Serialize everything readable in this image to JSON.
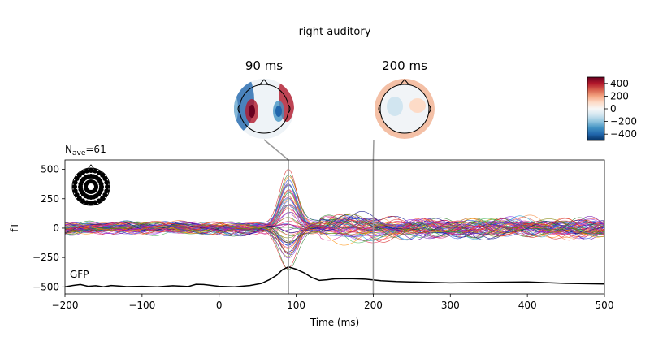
{
  "chart_data": {
    "type": "line",
    "title": "right auditory",
    "xlabel": "Time (ms)",
    "ylabel": "fT",
    "nave_label": "N",
    "nave_sub": "ave",
    "nave_value": "=61",
    "gfp_label": "GFP",
    "xlim": [
      -200,
      500
    ],
    "ylim": [
      -560,
      580
    ],
    "xticks": [
      -200,
      -100,
      0,
      100,
      200,
      300,
      400,
      500
    ],
    "xtick_labels": [
      "−200",
      "−100",
      "0",
      "100",
      "200",
      "300",
      "400",
      "500"
    ],
    "yticks": [
      500,
      250,
      0,
      -250,
      -500
    ],
    "ytick_labels": [
      "500",
      "250",
      "0",
      "−250",
      "−500"
    ],
    "grid": false,
    "markers": [
      90,
      200
    ],
    "topomaps": [
      {
        "label": "90 ms",
        "time": 90
      },
      {
        "label": "200 ms",
        "time": 200
      }
    ],
    "colorbar": {
      "range": [
        -500,
        500
      ],
      "ticks": [
        400,
        200,
        0,
        -200,
        -400
      ],
      "tick_labels": [
        "400",
        "200",
        "0",
        "−200",
        "−400"
      ],
      "colors": [
        "#053061",
        "#2166ac",
        "#4393c3",
        "#92c5de",
        "#d1e5f0",
        "#f7f7f7",
        "#fddbc7",
        "#f4a582",
        "#d6604d",
        "#b2182b",
        "#67001f"
      ]
    },
    "gfp": {
      "x": [
        -200,
        -190,
        -180,
        -170,
        -160,
        -150,
        -140,
        -130,
        -120,
        -100,
        -80,
        -60,
        -40,
        -30,
        -20,
        0,
        20,
        40,
        55,
        65,
        75,
        82,
        90,
        100,
        110,
        120,
        130,
        140,
        150,
        170,
        190,
        210,
        230,
        260,
        300,
        350,
        400,
        450,
        500
      ],
      "y": [
        -500,
        -488,
        -480,
        -495,
        -490,
        -500,
        -488,
        -492,
        -498,
        -495,
        -500,
        -490,
        -497,
        -478,
        -480,
        -495,
        -500,
        -488,
        -470,
        -440,
        -400,
        -355,
        -330,
        -350,
        -380,
        -420,
        -445,
        -440,
        -432,
        -430,
        -435,
        -448,
        -455,
        -460,
        -466,
        -462,
        -458,
        -470,
        -475
      ]
    },
    "channel_colors": [
      "#1f3fd6",
      "#2a7a2a",
      "#ff8c00",
      "#d61f8a",
      "#8a2be2",
      "#d62020",
      "#1f9fd6",
      "#3cb44b",
      "#f58231",
      "#911eb4",
      "#4363d8",
      "#e6194b",
      "#6a0dad",
      "#228b22",
      "#ff6347",
      "#c71585",
      "#000080",
      "#808000"
    ],
    "channel_peaks": [
      520,
      460,
      400,
      360,
      320,
      280,
      240,
      200,
      160,
      120,
      80,
      40,
      -30,
      -70,
      -110,
      -150,
      -190,
      -230,
      -270,
      -310
    ]
  }
}
